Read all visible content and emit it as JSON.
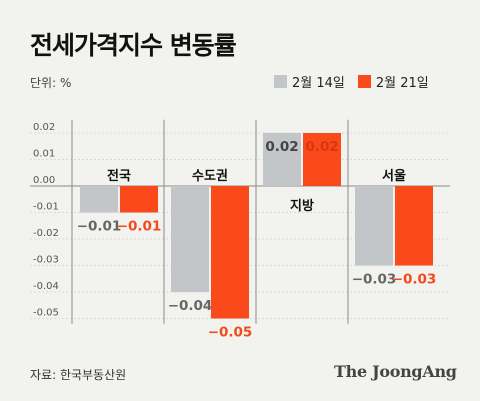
{
  "title": "전세가격지수 변동률",
  "unit_label": "단위: %",
  "source": "자료: 한국부동산원",
  "brand": "The JoongAng",
  "colors": {
    "prev": "#c2c6c8",
    "curr": "#fa4a1b",
    "label_prev": "#666666",
    "label_curr": "#f24a1a",
    "background": "#f2f2ef"
  },
  "chart_data": {
    "type": "bar",
    "categories": [
      "전국",
      "수도권",
      "지방",
      "서울"
    ],
    "series": [
      {
        "name": "2월 14일",
        "values": [
          -0.01,
          -0.04,
          0.02,
          -0.03
        ]
      },
      {
        "name": "2월 21일",
        "values": [
          -0.01,
          -0.05,
          0.02,
          -0.03
        ]
      }
    ],
    "value_labels": [
      [
        "−0.01",
        "−0.04",
        "0.02",
        "−0.03"
      ],
      [
        "−0.01",
        "−0.05",
        "0.02",
        "−0.03"
      ]
    ],
    "y_ticks": [
      "0.02",
      "0.01",
      "0.00",
      "-0.01",
      "-0.02",
      "-0.03",
      "-0.04",
      "-0.05"
    ],
    "ylim": [
      -0.05,
      0.02
    ],
    "legend_position": "top-right"
  }
}
